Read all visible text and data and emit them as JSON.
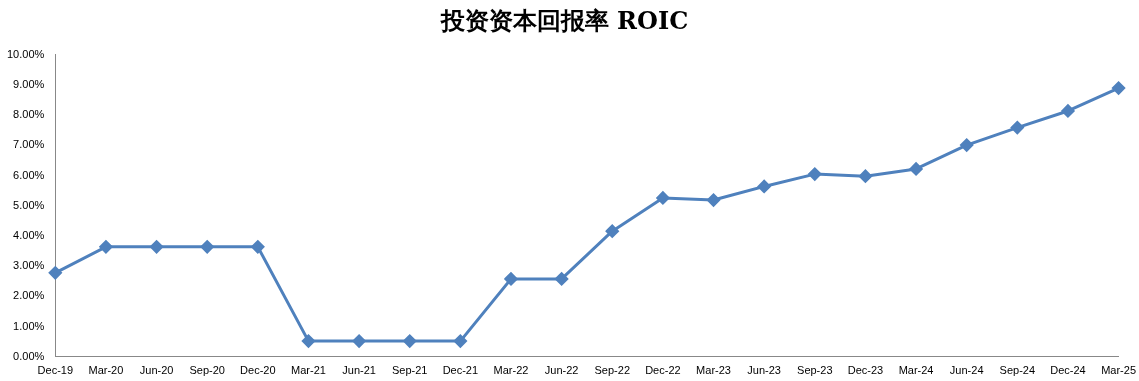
{
  "chart_data": {
    "type": "line",
    "title": "投资资本回报率 ROIC",
    "categories": [
      "Dec-19",
      "Mar-20",
      "Jun-20",
      "Sep-20",
      "Dec-20",
      "Mar-21",
      "Jun-21",
      "Sep-21",
      "Dec-21",
      "Mar-22",
      "Jun-22",
      "Sep-22",
      "Dec-22",
      "Mar-23",
      "Jun-23",
      "Sep-23",
      "Dec-23",
      "Mar-24",
      "Jun-24",
      "Sep-24",
      "Dec-24",
      "Mar-25"
    ],
    "series": [
      {
        "color": "#4f81bd",
        "values": [
          2.78,
          3.64,
          3.64,
          3.64,
          3.64,
          0.52,
          0.52,
          0.52,
          0.52,
          2.58,
          2.58,
          4.16,
          5.26,
          5.19,
          5.64,
          6.05,
          5.98,
          6.22,
          7.01,
          7.59,
          8.14,
          8.9
        ]
      }
    ],
    "ylim": [
      0,
      10
    ],
    "yticks": [
      {
        "value": 0,
        "label": "0.00%"
      },
      {
        "value": 1,
        "label": "1.00%"
      },
      {
        "value": 2,
        "label": "2.00%"
      },
      {
        "value": 3,
        "label": "3.00%"
      },
      {
        "value": 4,
        "label": "4.00%"
      },
      {
        "value": 5,
        "label": "5.00%"
      },
      {
        "value": 6,
        "label": "6.00%"
      },
      {
        "value": 7,
        "label": "7.00%"
      },
      {
        "value": 8,
        "label": "8.00%"
      },
      {
        "value": 9,
        "label": "9.00%"
      },
      {
        "value": 10,
        "label": "10.00%"
      }
    ],
    "grid": false,
    "legend": false,
    "marker": "diamond",
    "line_style": "solid"
  }
}
